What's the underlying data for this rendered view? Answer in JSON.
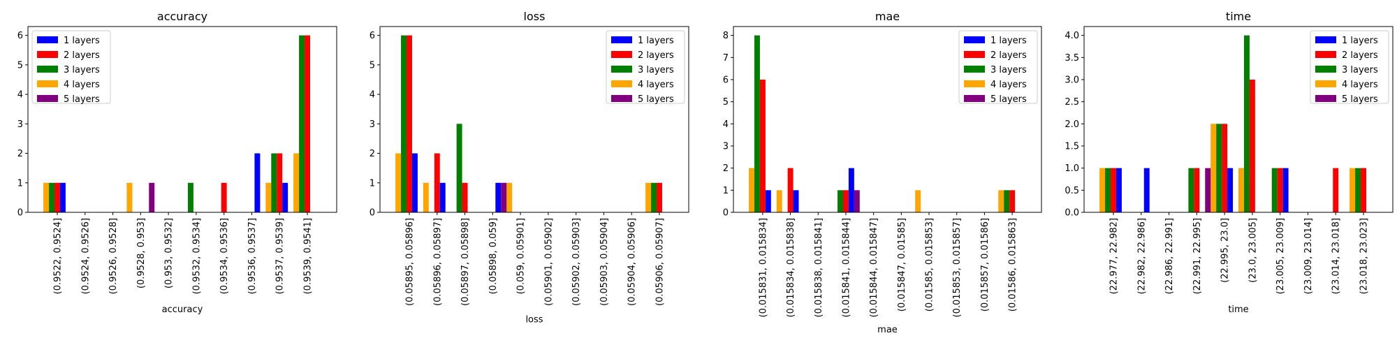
{
  "colors": {
    "1 layers": "#0000ff",
    "2 layers": "#ff0000",
    "3 layers": "#008000",
    "4 layers": "#ffa500",
    "5 layers": "#800080"
  },
  "chart_data": [
    {
      "type": "bar",
      "title": "accuracy",
      "xlabel": "accuracy",
      "ylabel": "",
      "ylim": [
        0,
        6.3
      ],
      "yticks": [
        "0",
        "1",
        "2",
        "3",
        "4",
        "5",
        "6"
      ],
      "ytick_values": [
        0,
        1,
        2,
        3,
        4,
        5,
        6
      ],
      "legend_position": "top-left",
      "categories": [
        "(0.9522, 0.9524]",
        "(0.9524, 0.9526]",
        "(0.9526, 0.9528]",
        "(0.9528, 0.953]",
        "(0.953, 0.9532]",
        "(0.9532, 0.9534]",
        "(0.9534, 0.9536]",
        "(0.9536, 0.9537]",
        "(0.9537, 0.9539]",
        "(0.9539, 0.9541]"
      ],
      "series": [
        {
          "name": "4 layers",
          "values": [
            1,
            0,
            0,
            1,
            0,
            0,
            0,
            0,
            1,
            2
          ]
        },
        {
          "name": "3 layers",
          "values": [
            1,
            0,
            0,
            0,
            0,
            1,
            0,
            0,
            2,
            6
          ]
        },
        {
          "name": "2 layers",
          "values": [
            1,
            0,
            0,
            0,
            0,
            0,
            1,
            0,
            2,
            6
          ]
        },
        {
          "name": "1 layers",
          "values": [
            1,
            0,
            0,
            0,
            0,
            0,
            0,
            2,
            1,
            0
          ]
        },
        {
          "name": "5 layers",
          "values": [
            0,
            0,
            0,
            1,
            0,
            0,
            0,
            0,
            0,
            0
          ]
        }
      ],
      "legend": [
        "1 layers",
        "2 layers",
        "3 layers",
        "4 layers",
        "5 layers"
      ]
    },
    {
      "type": "bar",
      "title": "loss",
      "xlabel": "loss",
      "ylabel": "",
      "ylim": [
        0,
        6.3
      ],
      "yticks": [
        "0",
        "1",
        "2",
        "3",
        "4",
        "5",
        "6"
      ],
      "ytick_values": [
        0,
        1,
        2,
        3,
        4,
        5,
        6
      ],
      "legend_position": "top-right",
      "categories": [
        "(0.05895, 0.05896]",
        "(0.05896, 0.05897]",
        "(0.05897, 0.05898]",
        "(0.05898, 0.059]",
        "(0.059, 0.05901]",
        "(0.05901, 0.05902]",
        "(0.05902, 0.05903]",
        "(0.05903, 0.05904]",
        "(0.05904, 0.05906]",
        "(0.05906, 0.05907]"
      ],
      "series": [
        {
          "name": "4 layers",
          "values": [
            2,
            1,
            0,
            0,
            1,
            0,
            0,
            0,
            0,
            1
          ]
        },
        {
          "name": "3 layers",
          "values": [
            6,
            0,
            3,
            0,
            0,
            0,
            0,
            0,
            0,
            1
          ]
        },
        {
          "name": "2 layers",
          "values": [
            6,
            2,
            1,
            0,
            0,
            0,
            0,
            0,
            0,
            1
          ]
        },
        {
          "name": "1 layers",
          "values": [
            2,
            1,
            0,
            1,
            0,
            0,
            0,
            0,
            0,
            0
          ]
        },
        {
          "name": "5 layers",
          "values": [
            0,
            0,
            0,
            1,
            0,
            0,
            0,
            0,
            0,
            0
          ]
        }
      ],
      "legend": [
        "1 layers",
        "2 layers",
        "3 layers",
        "4 layers",
        "5 layers"
      ]
    },
    {
      "type": "bar",
      "title": "mae",
      "xlabel": "mae",
      "ylabel": "",
      "ylim": [
        0,
        8.4
      ],
      "yticks": [
        "0",
        "1",
        "2",
        "3",
        "4",
        "5",
        "6",
        "7",
        "8"
      ],
      "ytick_values": [
        0,
        1,
        2,
        3,
        4,
        5,
        6,
        7,
        8
      ],
      "legend_position": "top-right",
      "categories": [
        "(0.015831, 0.015834]",
        "(0.015834, 0.015838]",
        "(0.015838, 0.015841]",
        "(0.015841, 0.015844]",
        "(0.015844, 0.015847]",
        "(0.015847, 0.01585]",
        "(0.01585, 0.015853]",
        "(0.015853, 0.015857]",
        "(0.015857, 0.01586]",
        "(0.01586, 0.015863]"
      ],
      "series": [
        {
          "name": "4 layers",
          "values": [
            2,
            1,
            0,
            0,
            0,
            0,
            1,
            0,
            0,
            1
          ]
        },
        {
          "name": "3 layers",
          "values": [
            8,
            0,
            0,
            1,
            0,
            0,
            0,
            0,
            0,
            1
          ]
        },
        {
          "name": "2 layers",
          "values": [
            6,
            2,
            0,
            1,
            0,
            0,
            0,
            0,
            0,
            1
          ]
        },
        {
          "name": "1 layers",
          "values": [
            1,
            1,
            0,
            2,
            0,
            0,
            0,
            0,
            0,
            0
          ]
        },
        {
          "name": "5 layers",
          "values": [
            0,
            0,
            0,
            1,
            0,
            0,
            0,
            0,
            0,
            0
          ]
        }
      ],
      "legend": [
        "1 layers",
        "2 layers",
        "3 layers",
        "4 layers",
        "5 layers"
      ]
    },
    {
      "type": "bar",
      "title": "time",
      "xlabel": "time",
      "ylabel": "",
      "ylim": [
        0,
        4.2
      ],
      "yticks": [
        "0.0",
        "0.5",
        "1.0",
        "1.5",
        "2.0",
        "2.5",
        "3.0",
        "3.5",
        "4.0"
      ],
      "ytick_values": [
        0,
        0.5,
        1,
        1.5,
        2,
        2.5,
        3,
        3.5,
        4
      ],
      "legend_position": "top-right",
      "categories": [
        "(22.977, 22.982]",
        "(22.982, 22.986]",
        "(22.986, 22.991]",
        "(22.991, 22.995]",
        "(22.995, 23.0]",
        "(23.0, 23.005]",
        "(23.005, 23.009]",
        "(23.009, 23.014]",
        "(23.014, 23.018]",
        "(23.018, 23.023]"
      ],
      "series": [
        {
          "name": "4 layers",
          "values": [
            1,
            0,
            0,
            0,
            2,
            1,
            0,
            0,
            0,
            1
          ]
        },
        {
          "name": "3 layers",
          "values": [
            1,
            0,
            0,
            1,
            2,
            4,
            1,
            0,
            0,
            1
          ]
        },
        {
          "name": "2 layers",
          "values": [
            1,
            0,
            0,
            1,
            2,
            3,
            1,
            0,
            1,
            1
          ]
        },
        {
          "name": "1 layers",
          "values": [
            1,
            1,
            0,
            0,
            1,
            0,
            1,
            0,
            0,
            0
          ]
        },
        {
          "name": "5 layers",
          "values": [
            0,
            0,
            0,
            1,
            0,
            0,
            0,
            0,
            0,
            0
          ]
        }
      ],
      "legend": [
        "1 layers",
        "2 layers",
        "3 layers",
        "4 layers",
        "5 layers"
      ]
    }
  ]
}
